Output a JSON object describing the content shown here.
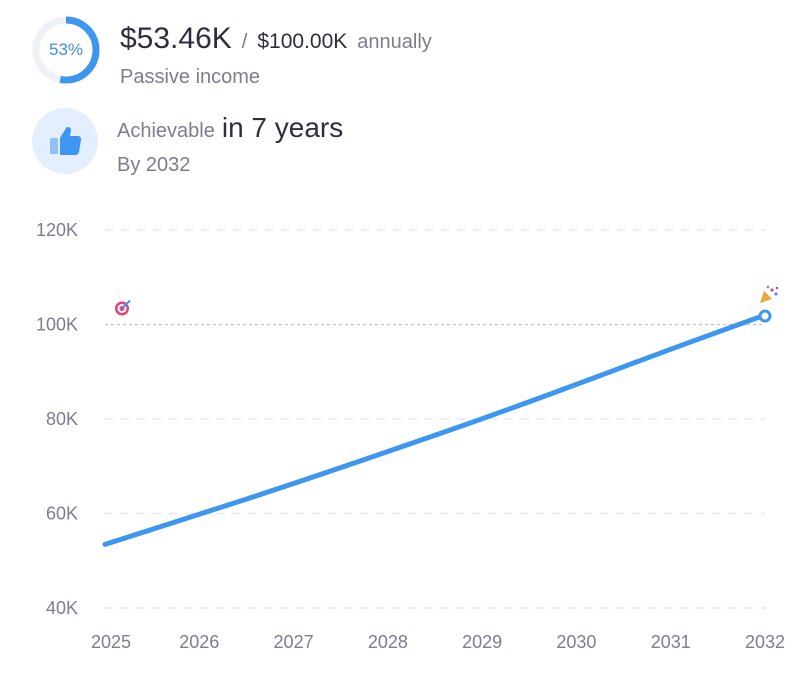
{
  "summary": {
    "progress_label": "53%",
    "progress_fraction": 0.53,
    "current_amount": "$53.46K",
    "separator": "/",
    "goal_amount": "$100.00K",
    "period": "annually",
    "subtitle": "Passive income"
  },
  "achievement": {
    "label": "Achievable",
    "value": "in 7 years",
    "by": "By 2032",
    "icon": "thumbs-up-icon"
  },
  "colors": {
    "accent": "#3d97f0",
    "ring_track": "#eef1f5",
    "grid": "#e6e8ee",
    "target_line": "#bfc2cc",
    "thumb_bg": "#e3efff"
  },
  "chart_data": {
    "type": "line",
    "x": [
      2025,
      2026,
      2027,
      2028,
      2029,
      2030,
      2031,
      2032
    ],
    "x_tick_labels": [
      "2025",
      "2026",
      "2027",
      "2028",
      "2029",
      "2030",
      "2031",
      "2032"
    ],
    "series": [
      {
        "values": [
          53.46,
          59.8,
          66.3,
          73.1,
          80.0,
          87.3,
          94.8,
          102.0
        ]
      }
    ],
    "target_value": 100,
    "y_ticks": [
      40,
      60,
      80,
      100,
      120
    ],
    "y_tick_labels": [
      "40K",
      "60K",
      "80K",
      "100K",
      "120K"
    ],
    "ylim": [
      40,
      120
    ],
    "xlim": [
      2025,
      2032
    ],
    "grid": true,
    "markers": {
      "start": "target-icon",
      "end": "party-popper-icon"
    }
  }
}
